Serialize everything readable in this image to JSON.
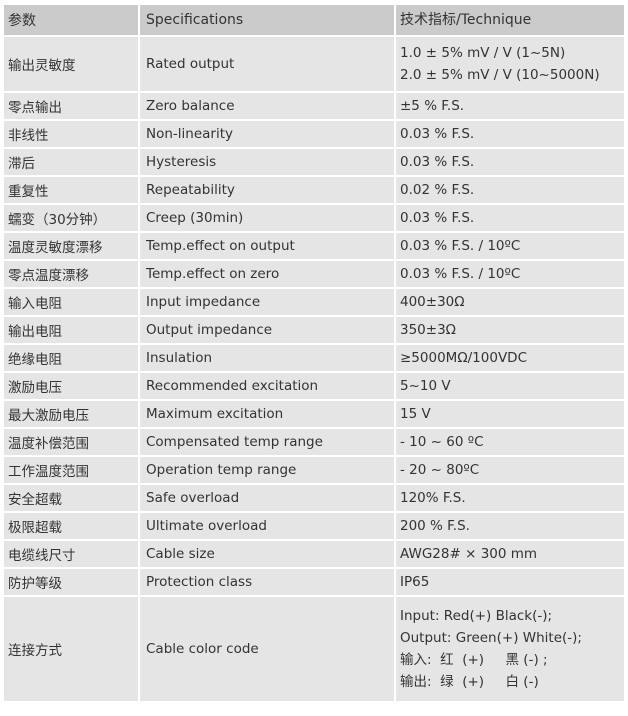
{
  "header": [
    "参数",
    "Specifications",
    "技术指标/Technique"
  ],
  "rows": [
    {
      "cn": "输出灵敏度",
      "en": "Rated output",
      "val": [
        "1.0 ± 5% mV / V (1~5N)",
        "2.0 ± 5% mV / V (10~5000N)"
      ]
    },
    {
      "cn": "零点输出",
      "en": "Zero balance",
      "val": [
        "±5 % F.S."
      ]
    },
    {
      "cn": "非线性",
      "en": "Non-linearity",
      "val": [
        "0.03 % F.S."
      ]
    },
    {
      "cn": "滞后",
      "en": "Hysteresis",
      "val": [
        "0.03 % F.S."
      ]
    },
    {
      "cn": "重复性",
      "en": "Repeatability",
      "val": [
        "0.02 % F.S."
      ]
    },
    {
      "cn": "蠕变（30分钟）",
      "en": "Creep (30min)",
      "val": [
        "0.03 % F.S."
      ]
    },
    {
      "cn": "温度灵敏度漂移",
      "en": "Temp.effect on output",
      "val": [
        "0.03 % F.S. / 10ºC"
      ]
    },
    {
      "cn": "零点温度漂移",
      "en": "Temp.effect on zero",
      "val": [
        "0.03 % F.S. / 10ºC"
      ]
    },
    {
      "cn": "输入电阻",
      "en": "Input impedance",
      "val": [
        "400±30Ω"
      ]
    },
    {
      "cn": "输出电阻",
      "en": "Output impedance",
      "val": [
        "350±3Ω"
      ]
    },
    {
      "cn": "绝缘电阻",
      "en": "Insulation",
      "val": [
        "≥5000MΩ/100VDC"
      ]
    },
    {
      "cn": "激励电压",
      "en": "Recommended excitation",
      "val": [
        "5~10 V"
      ]
    },
    {
      "cn": "最大激励电压",
      "en": "Maximum excitation",
      "val": [
        "15 V"
      ]
    },
    {
      "cn": "温度补偿范围",
      "en": "Compensated temp range",
      "val": [
        "- 10 ~ 60 ºC"
      ]
    },
    {
      "cn": "工作温度范围",
      "en": "Operation temp range",
      "val": [
        "- 20 ~ 80ºC"
      ]
    },
    {
      "cn": "安全超载",
      "en": "Safe overload",
      "val": [
        "120% F.S."
      ]
    },
    {
      "cn": "极限超载",
      "en": "Ultimate overload",
      "val": [
        "200 % F.S."
      ]
    },
    {
      "cn": "电缆线尺寸",
      "en": "Cable size",
      "val": [
        "AWG28# × 300 mm"
      ]
    },
    {
      "cn": "防护等级",
      "en": "Protection class",
      "val": [
        "IP65"
      ]
    },
    {
      "cn": "连接方式",
      "en": "Cable color code",
      "val": [
        "Input: Red(+) Black(-);",
        "Output: Green(+) White(-);",
        "输入:  红  (+)     黑 (-) ;",
        "输出:  绿  (+)     白 (-)"
      ]
    }
  ]
}
